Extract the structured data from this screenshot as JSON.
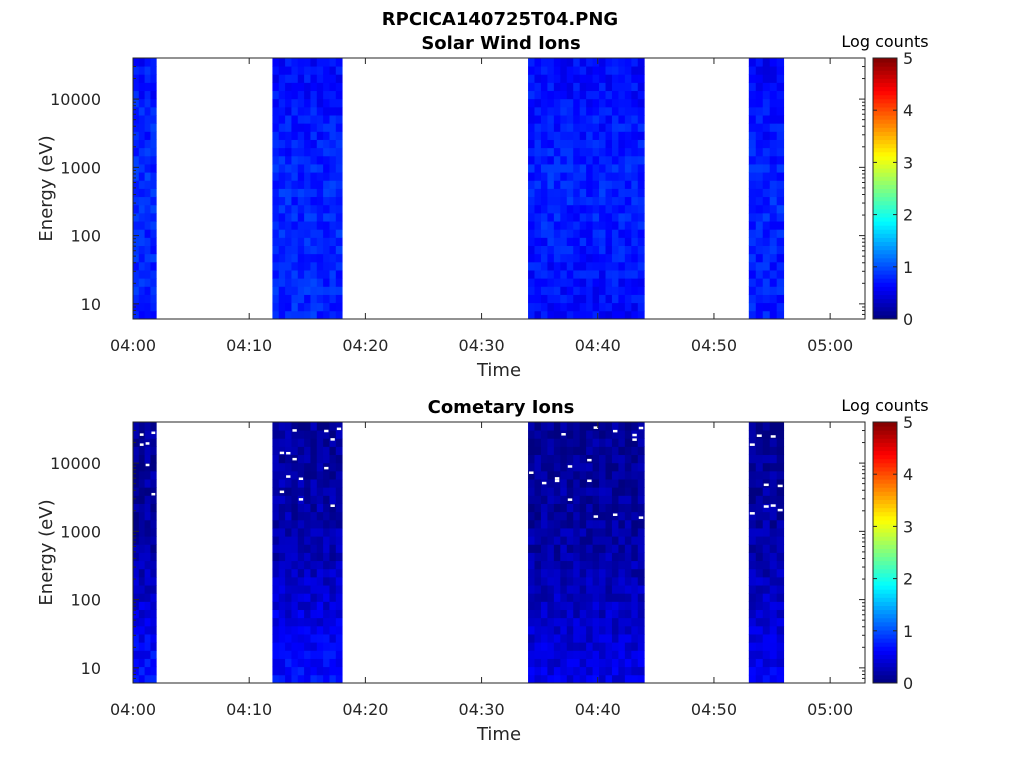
{
  "figure_title": "RPCICA140725T04.PNG",
  "chart_data": [
    {
      "type": "heatmap",
      "title": "Solar Wind Ions",
      "xlabel": "Time",
      "ylabel": "Energy (eV)",
      "y_scale": "log",
      "x_range": [
        "04:00",
        "05:03"
      ],
      "y_range": [
        6,
        40000
      ],
      "x_ticks": [
        "04:00",
        "04:10",
        "04:20",
        "04:30",
        "04:40",
        "04:50",
        "05:00"
      ],
      "y_ticks": [
        "10",
        "100",
        "1000",
        "10000"
      ],
      "colorbar": {
        "label": "Log counts",
        "range": [
          0,
          5
        ],
        "ticks": [
          "0",
          "1",
          "2",
          "3",
          "4",
          "5"
        ],
        "colormap": "jet"
      },
      "data_intervals": [
        {
          "start": "04:00",
          "end": "04:02",
          "level_low_energy": 0.75,
          "level_mid_energy": 0.85,
          "level_high_energy": 0.7
        },
        {
          "start": "04:12",
          "end": "04:18",
          "level_low_energy": 0.8,
          "level_mid_energy": 0.8,
          "level_high_energy": 0.65
        },
        {
          "start": "04:34",
          "end": "04:44",
          "level_low_energy": 0.65,
          "level_mid_energy": 0.8,
          "level_high_energy": 0.65
        },
        {
          "start": "04:53",
          "end": "04:56",
          "level_low_energy": 0.75,
          "level_mid_energy": 0.8,
          "level_high_energy": 0.6
        }
      ],
      "no_data_color": "#ffffff"
    },
    {
      "type": "heatmap",
      "title": "Cometary Ions",
      "xlabel": "Time",
      "ylabel": "Energy (eV)",
      "y_scale": "log",
      "x_range": [
        "04:00",
        "05:03"
      ],
      "y_range": [
        6,
        40000
      ],
      "x_ticks": [
        "04:00",
        "04:10",
        "04:20",
        "04:30",
        "04:40",
        "04:50",
        "05:00"
      ],
      "y_ticks": [
        "10",
        "100",
        "1000",
        "10000"
      ],
      "colorbar": {
        "label": "Log counts",
        "range": [
          0,
          5
        ],
        "ticks": [
          "0",
          "1",
          "2",
          "3",
          "4",
          "5"
        ],
        "colormap": "jet"
      },
      "data_intervals": [
        {
          "start": "04:00",
          "end": "04:02",
          "level_low_energy": 0.75,
          "level_mid_energy": 0.2,
          "level_high_energy": 0.1
        },
        {
          "start": "04:12",
          "end": "04:18",
          "level_low_energy": 0.7,
          "level_mid_energy": 0.25,
          "level_high_energy": 0.15
        },
        {
          "start": "04:34",
          "end": "04:44",
          "level_low_energy": 0.5,
          "level_mid_energy": 0.2,
          "level_high_energy": 0.1
        },
        {
          "start": "04:53",
          "end": "04:56",
          "level_low_energy": 0.55,
          "level_mid_energy": 0.2,
          "level_high_energy": 0.1
        }
      ],
      "no_data_color": "#ffffff"
    }
  ]
}
